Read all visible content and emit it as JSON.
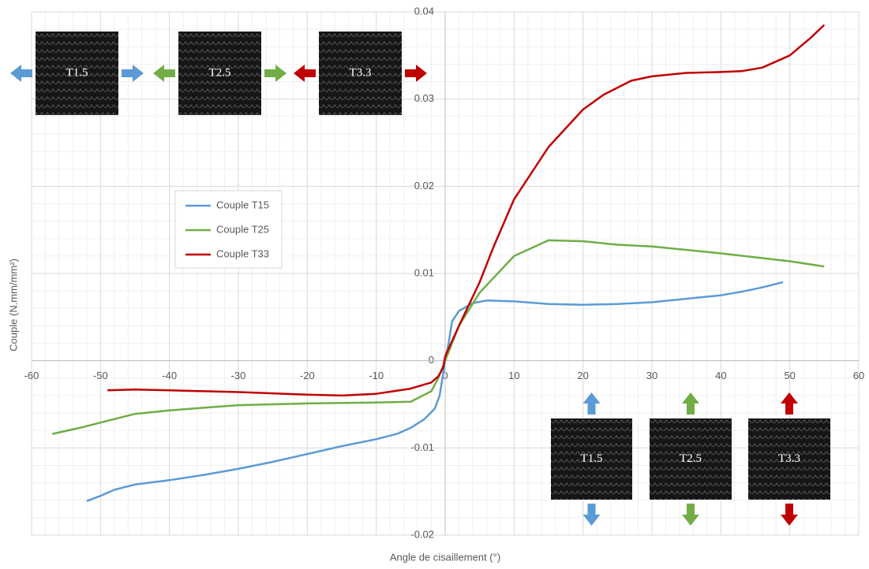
{
  "chart_data": {
    "type": "line",
    "xlabel": "Angle de cisaillement (°)",
    "ylabel": "Couple (N.mm/mm²)",
    "xlim": [
      -60,
      60
    ],
    "xticks": [
      -60,
      -50,
      -40,
      -30,
      -20,
      -10,
      0,
      10,
      20,
      30,
      40,
      50,
      60
    ],
    "ylim": [
      -0.02,
      0.04
    ],
    "yticks": [
      -0.02,
      -0.01,
      0,
      0.01,
      0.02,
      0.03,
      0.04
    ],
    "grid": true,
    "series": [
      {
        "name": "Couple T15",
        "color": "#5b9bd5",
        "x": [
          -52,
          -50,
          -48,
          -45,
          -40,
          -35,
          -30,
          -25,
          -20,
          -15,
          -10,
          -7,
          -5,
          -3,
          -1.5,
          -0.8,
          -0.3,
          0,
          0.5,
          1,
          2,
          4,
          6,
          10,
          15,
          20,
          25,
          30,
          35,
          40,
          43,
          46,
          49
        ],
        "values": [
          -0.0161,
          -0.0155,
          -0.0148,
          -0.0142,
          -0.0137,
          -0.0131,
          -0.0124,
          -0.0116,
          -0.0107,
          -0.0098,
          -0.009,
          -0.0084,
          -0.0077,
          -0.0067,
          -0.0055,
          -0.004,
          -0.0015,
          0,
          0.002,
          0.0045,
          0.0057,
          0.0066,
          0.0069,
          0.0068,
          0.0065,
          0.0064,
          0.0065,
          0.0067,
          0.0071,
          0.0075,
          0.0079,
          0.0084,
          0.009
        ]
      },
      {
        "name": "Couple T25",
        "color": "#70ad47",
        "x": [
          -57,
          -53,
          -50,
          -45,
          -40,
          -35,
          -30,
          -20,
          -10,
          -5,
          -2,
          -1,
          0,
          2,
          5,
          10,
          15,
          20,
          25,
          30,
          40,
          50,
          55
        ],
        "values": [
          -0.0084,
          -0.0077,
          -0.0071,
          -0.0061,
          -0.0057,
          -0.0054,
          -0.0051,
          -0.0049,
          -0.0048,
          -0.0047,
          -0.0035,
          -0.002,
          0,
          0.004,
          0.0078,
          0.012,
          0.0138,
          0.0137,
          0.0133,
          0.0131,
          0.0123,
          0.0114,
          0.0108
        ]
      },
      {
        "name": "Couple T33",
        "color": "#c00000",
        "x": [
          -49,
          -45,
          -40,
          -30,
          -20,
          -15,
          -10,
          -5,
          -2,
          -1,
          -0.3,
          0,
          2,
          5,
          7,
          10,
          15,
          20,
          23,
          27,
          30,
          35,
          40,
          43,
          46,
          50,
          53,
          55
        ],
        "values": [
          -0.0034,
          -0.0033,
          -0.0034,
          -0.0036,
          -0.0039,
          -0.004,
          -0.0038,
          -0.0032,
          -0.0025,
          -0.0018,
          -0.0008,
          0.0005,
          0.004,
          0.009,
          0.013,
          0.0185,
          0.0245,
          0.0288,
          0.0305,
          0.0321,
          0.0326,
          0.033,
          0.0331,
          0.0332,
          0.0336,
          0.035,
          0.037,
          0.0385
        ]
      }
    ],
    "annotations": [
      "T1.5",
      "T2.5",
      "T3.3",
      "T1.5",
      "T2.5",
      "T3.3"
    ]
  }
}
